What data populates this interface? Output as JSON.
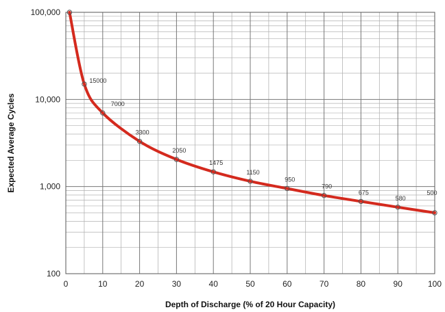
{
  "chart_data": {
    "type": "line",
    "title": "",
    "xlabel": "Depth of Discharge (% of 20 Hour Capacity)",
    "ylabel": "Expected Average Cycles",
    "xlim": [
      0,
      100
    ],
    "ylim": [
      100,
      100000
    ],
    "y_scale": "log",
    "grid": true,
    "x_ticks": [
      0,
      10,
      20,
      30,
      40,
      50,
      60,
      70,
      80,
      90,
      100
    ],
    "x_tick_labels": [
      "0",
      "10",
      "20",
      "30",
      "40",
      "50",
      "60",
      "70",
      "80",
      "90",
      "100"
    ],
    "y_ticks": [
      100,
      1000,
      10000,
      100000
    ],
    "y_tick_labels": [
      "100",
      "1,000",
      "10,000",
      "100,000"
    ],
    "line_color": "#d42a1e",
    "series": [
      {
        "x": [
          1,
          5,
          10,
          20,
          30,
          40,
          50,
          60,
          70,
          80,
          90,
          100
        ],
        "y": [
          100000,
          15000,
          7000,
          3300,
          2050,
          1475,
          1150,
          950,
          790,
          675,
          580,
          500
        ]
      }
    ],
    "annotations": [
      {
        "x": 5,
        "y": 15000,
        "text": "15000"
      },
      {
        "x": 10,
        "y": 7000,
        "text": "7000"
      },
      {
        "x": 20,
        "y": 3300,
        "text": "3300"
      },
      {
        "x": 30,
        "y": 2050,
        "text": "2050"
      },
      {
        "x": 40,
        "y": 1475,
        "text": "1475"
      },
      {
        "x": 50,
        "y": 1150,
        "text": "1150"
      },
      {
        "x": 60,
        "y": 950,
        "text": "950"
      },
      {
        "x": 70,
        "y": 790,
        "text": "790"
      },
      {
        "x": 80,
        "y": 675,
        "text": "675"
      },
      {
        "x": 90,
        "y": 580,
        "text": "580"
      },
      {
        "x": 100,
        "y": 500,
        "text": "500"
      }
    ]
  }
}
